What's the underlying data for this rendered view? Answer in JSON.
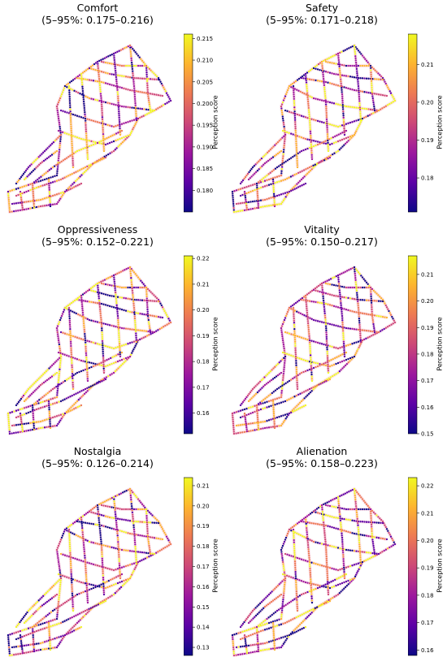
{
  "colorbar_label": "Perception score",
  "colormap": [
    "#0d0887",
    "#5c01a6",
    "#9c179e",
    "#cc4778",
    "#ed7953",
    "#fdb42f",
    "#f0f921"
  ],
  "panels": [
    {
      "name": "comfort",
      "title": "Comfort",
      "subtitle": "(5–95%: 0.175–0.216)",
      "range": [
        0.175,
        0.216
      ],
      "ticks": [
        "0.180",
        "0.185",
        "0.190",
        "0.195",
        "0.200",
        "0.205",
        "0.210",
        "0.215"
      ]
    },
    {
      "name": "safety",
      "title": "Safety",
      "subtitle": "(5–95%: 0.171–0.218)",
      "range": [
        0.171,
        0.218
      ],
      "ticks": [
        "0.18",
        "0.19",
        "0.20",
        "0.21"
      ]
    },
    {
      "name": "oppressiveness",
      "title": "Oppressiveness",
      "subtitle": "(5–95%: 0.152–0.221)",
      "range": [
        0.152,
        0.221
      ],
      "ticks": [
        "0.16",
        "0.17",
        "0.18",
        "0.19",
        "0.20",
        "0.21",
        "0.22"
      ]
    },
    {
      "name": "vitality",
      "title": "Vitality",
      "subtitle": "(5–95%: 0.150–0.217)",
      "range": [
        0.15,
        0.217
      ],
      "ticks": [
        "0.15",
        "0.16",
        "0.17",
        "0.18",
        "0.19",
        "0.20",
        "0.21"
      ]
    },
    {
      "name": "nostalgia",
      "title": "Nostalgia",
      "subtitle": "(5–95%: 0.126–0.214)",
      "range": [
        0.126,
        0.214
      ],
      "ticks": [
        "0.13",
        "0.14",
        "0.15",
        "0.16",
        "0.17",
        "0.18",
        "0.19",
        "0.20",
        "0.21"
      ]
    },
    {
      "name": "alienation",
      "title": "Alienation",
      "subtitle": "(5–95%: 0.158–0.223)",
      "range": [
        0.158,
        0.223
      ],
      "ticks": [
        "0.16",
        "0.17",
        "0.18",
        "0.19",
        "0.20",
        "0.21",
        "0.22"
      ]
    }
  ]
}
